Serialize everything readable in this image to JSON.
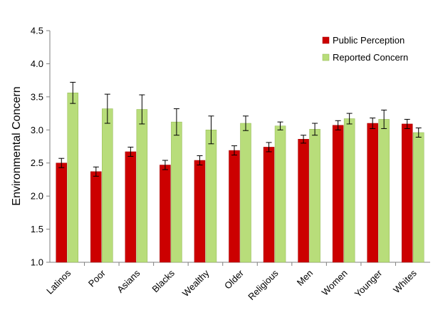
{
  "chart_data": {
    "type": "bar",
    "title": "",
    "xlabel": "",
    "ylabel": "Environmental Concern",
    "ylim": [
      1.0,
      4.5
    ],
    "yticks": [
      "1.0",
      "1.5",
      "2.0",
      "2.5",
      "3.0",
      "3.5",
      "4.0",
      "4.5"
    ],
    "grid": false,
    "legend_position": "top-right",
    "categories": [
      "Latinos",
      "Poor",
      "Asians",
      "Blacks",
      "Wealthy",
      "Older",
      "Religious",
      "Men",
      "Women",
      "Younger",
      "Whites"
    ],
    "series": [
      {
        "name": "Public Perception",
        "color": "#cc0000",
        "values": [
          2.5,
          2.37,
          2.67,
          2.47,
          2.54,
          2.69,
          2.74,
          2.86,
          3.07,
          3.1,
          3.09
        ],
        "errors": [
          0.07,
          0.07,
          0.07,
          0.07,
          0.07,
          0.07,
          0.07,
          0.06,
          0.07,
          0.08,
          0.07
        ]
      },
      {
        "name": "Reported Concern",
        "color": "#b8dd7a",
        "values": [
          3.56,
          3.32,
          3.31,
          3.12,
          3.0,
          3.1,
          3.06,
          3.01,
          3.17,
          3.16,
          2.96
        ],
        "errors": [
          0.16,
          0.22,
          0.22,
          0.2,
          0.21,
          0.11,
          0.06,
          0.09,
          0.08,
          0.14,
          0.07
        ]
      }
    ]
  }
}
